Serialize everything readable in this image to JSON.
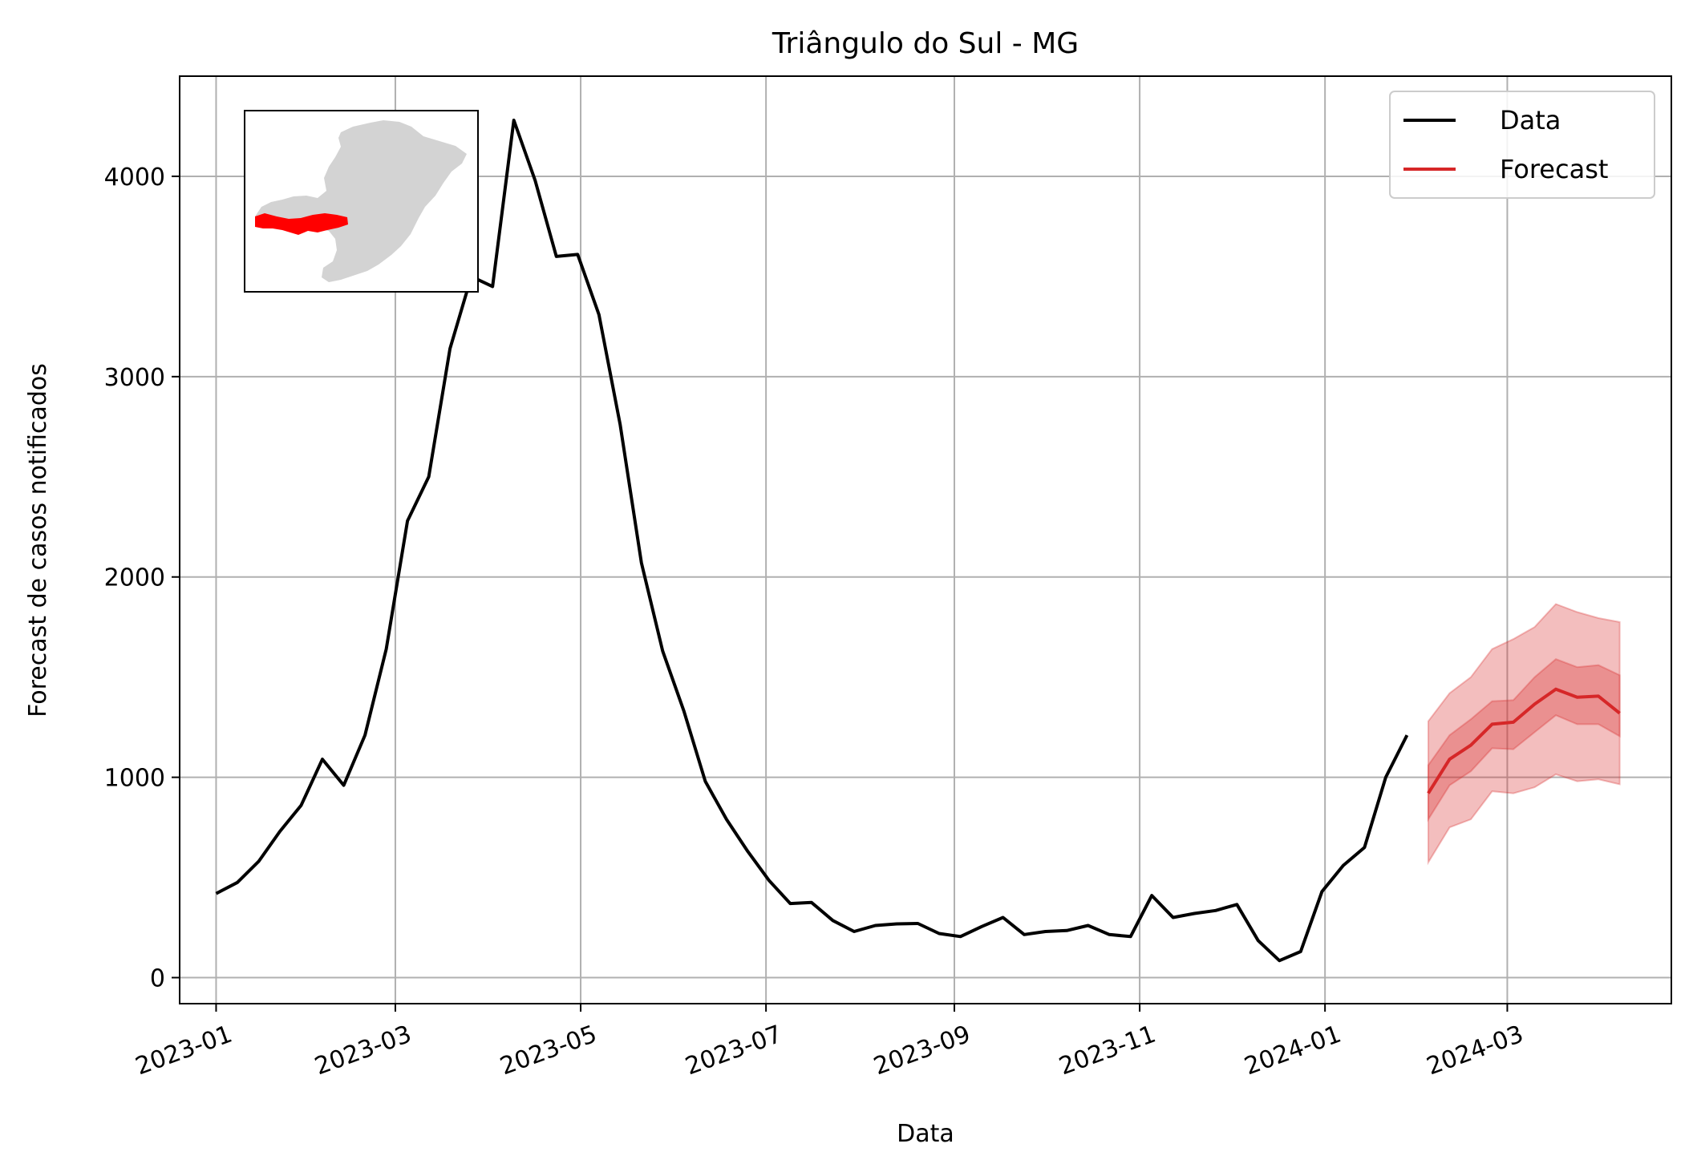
{
  "chart_data": {
    "type": "line",
    "title": "Triângulo do Sul - MG",
    "xlabel": "Data",
    "ylabel": "Forecast de casos notificados",
    "ylim": [
      -130,
      4500
    ],
    "xlim": [
      "2022-12-20",
      "2024-04-24"
    ],
    "grid": true,
    "legend_position": "top-right",
    "x_ticks": [
      "2023-01",
      "2023-03",
      "2023-05",
      "2023-07",
      "2023-09",
      "2023-11",
      "2024-01",
      "2024-03"
    ],
    "y_ticks": [
      0,
      1000,
      2000,
      3000,
      4000
    ],
    "y_tick_labels": [
      "0",
      "1000",
      "2000",
      "3000",
      "4000"
    ],
    "series": [
      {
        "name": "Data",
        "color": "#000000",
        "start_date": "2023-01-01",
        "interval_days": 7,
        "values": [
          420,
          475,
          580,
          730,
          860,
          1090,
          960,
          1210,
          1640,
          2280,
          2500,
          3140,
          3500,
          3450,
          4280,
          3980,
          3600,
          3610,
          3310,
          2760,
          2070,
          1630,
          1330,
          980,
          790,
          630,
          485,
          370,
          375,
          285,
          230,
          260,
          268,
          270,
          220,
          205,
          255,
          300,
          215,
          230,
          235,
          260,
          215,
          205,
          410,
          300,
          320,
          335,
          365,
          185,
          85,
          130,
          430,
          560,
          650,
          1000,
          1210
        ]
      },
      {
        "name": "Forecast",
        "color": "#d62728",
        "start_date": "2024-02-04",
        "interval_days": 7,
        "values": [
          920,
          1090,
          1160,
          1265,
          1275,
          1365,
          1440,
          1400,
          1405,
          1320
        ],
        "band_inner_lower": [
          790,
          960,
          1030,
          1145,
          1140,
          1225,
          1310,
          1265,
          1265,
          1205
        ],
        "band_inner_upper": [
          1060,
          1210,
          1290,
          1380,
          1385,
          1500,
          1590,
          1550,
          1560,
          1510
        ],
        "band_outer_lower": [
          575,
          750,
          790,
          930,
          920,
          950,
          1015,
          980,
          990,
          965
        ],
        "band_outer_upper": [
          1280,
          1420,
          1500,
          1640,
          1690,
          1750,
          1865,
          1825,
          1795,
          1775
        ]
      }
    ]
  },
  "inset_map": {
    "state_fill": "#d3d3d3",
    "region_fill": "#ff0000"
  }
}
